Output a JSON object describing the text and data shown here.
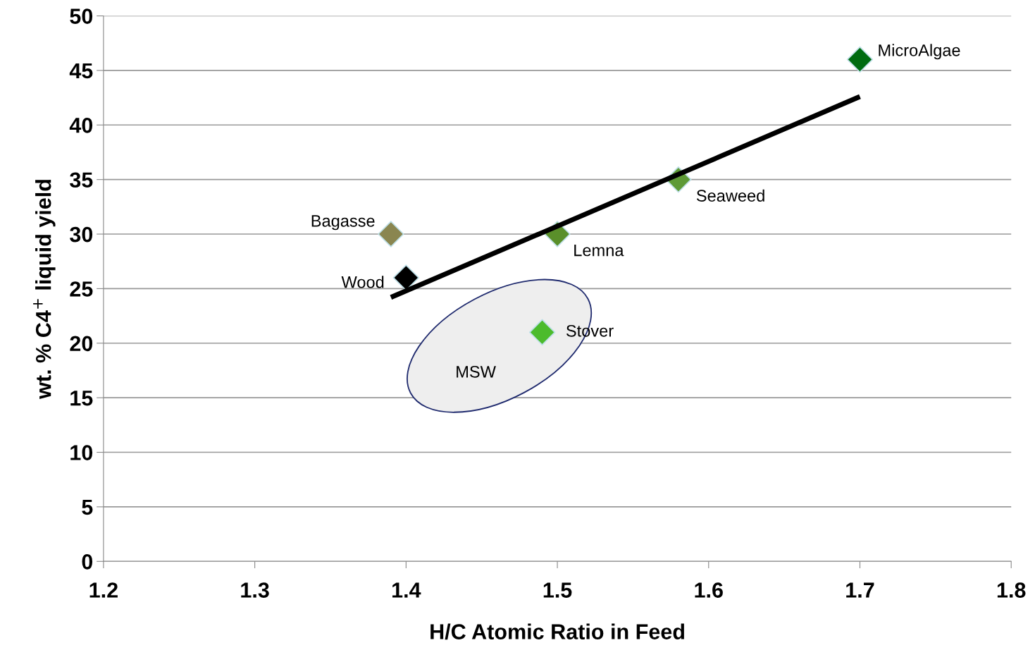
{
  "chart_data": {
    "type": "scatter",
    "xlabel": "H/C Atomic Ratio in Feed",
    "ylabel": "wt. % C4$^{+}$ liquid yield",
    "xlim": [
      1.2,
      1.8
    ],
    "xticks": [
      1.2,
      1.3,
      1.4,
      1.5,
      1.6,
      1.7,
      1.8
    ],
    "ylim": [
      0,
      50
    ],
    "yticks": [
      0,
      5,
      10,
      15,
      20,
      25,
      30,
      35,
      40,
      45,
      50
    ],
    "grid": "y",
    "marker": "diamond",
    "series": [
      {
        "name": "MicroAlgae",
        "color": "#006b10",
        "x": [
          1.7
        ],
        "values": [
          46
        ]
      },
      {
        "name": "Seaweed",
        "color": "#5e9a36",
        "x": [
          1.58
        ],
        "values": [
          35
        ]
      },
      {
        "name": "Lemna",
        "color": "#5a8f2a",
        "x": [
          1.5
        ],
        "values": [
          30
        ]
      },
      {
        "name": "Bagasse",
        "color": "#8a8650",
        "x": [
          1.39
        ],
        "values": [
          30
        ]
      },
      {
        "name": "Wood",
        "color": "#000000",
        "x": [
          1.4
        ],
        "values": [
          26
        ]
      },
      {
        "name": "Stover",
        "color": "#4cbb2c",
        "x": [
          1.49
        ],
        "values": [
          21
        ]
      },
      {
        "type": "line",
        "marker": "none",
        "color": "#000000",
        "x": [
          1.39,
          1.7
        ],
        "values": [
          24.2,
          42.6
        ]
      }
    ],
    "annotations": [
      "MSW"
    ]
  }
}
